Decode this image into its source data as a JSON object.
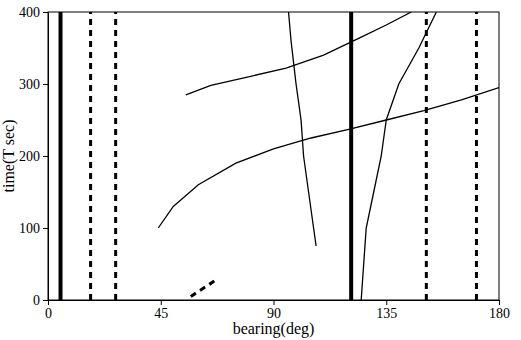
{
  "chart_data": {
    "type": "line",
    "x_label": "bearing(deg)",
    "y_label": "time(T sec)",
    "xlim": [
      0,
      180
    ],
    "ylim": [
      0,
      400
    ],
    "xticks": [
      0,
      45,
      90,
      135,
      180
    ],
    "yticks": [
      0,
      100,
      200,
      300,
      400
    ],
    "grid": false,
    "series": [
      {
        "color": "#000000",
        "line_style": "thick",
        "x": [
          5,
          5
        ],
        "values": [
          0,
          400
        ]
      },
      {
        "color": "#000000",
        "line_style": "broken",
        "x": [
          17,
          17
        ],
        "values": [
          0,
          400
        ]
      },
      {
        "color": "#000000",
        "line_style": "broken",
        "x": [
          27,
          27
        ],
        "values": [
          0,
          400
        ]
      },
      {
        "color": "#000000",
        "line_style": "thick",
        "x": [
          121,
          121
        ],
        "values": [
          0,
          400
        ]
      },
      {
        "color": "#000000",
        "line_style": "broken",
        "x": [
          151,
          151
        ],
        "values": [
          0,
          400
        ]
      },
      {
        "color": "#000000",
        "line_style": "broken",
        "x": [
          171,
          171
        ],
        "values": [
          0,
          400
        ]
      },
      {
        "color": "#000000",
        "line_style": "broken",
        "x": [
          57,
          68
        ],
        "values": [
          5,
          30
        ]
      },
      {
        "color": "#000000",
        "line_style": "solid",
        "x": [
          44,
          50,
          60,
          75,
          90,
          105,
          120,
          135,
          150,
          165,
          180
        ],
        "values": [
          100,
          130,
          160,
          190,
          210,
          225,
          237,
          250,
          263,
          278,
          295
        ]
      },
      {
        "color": "#000000",
        "line_style": "solid",
        "x": [
          55,
          65,
          80,
          95,
          110,
          125,
          135,
          145
        ],
        "values": [
          285,
          298,
          310,
          322,
          340,
          365,
          382,
          400
        ]
      },
      {
        "color": "#000000",
        "line_style": "solid",
        "x": [
          107,
          106,
          104,
          102,
          101,
          99,
          98,
          97,
          96
        ],
        "values": [
          75,
          100,
          150,
          200,
          250,
          300,
          330,
          360,
          400
        ]
      },
      {
        "color": "#000000",
        "line_style": "solid",
        "x": [
          125,
          126,
          127,
          130,
          133,
          135,
          140,
          148,
          155
        ],
        "values": [
          0,
          50,
          100,
          150,
          200,
          250,
          300,
          350,
          400
        ]
      }
    ]
  }
}
